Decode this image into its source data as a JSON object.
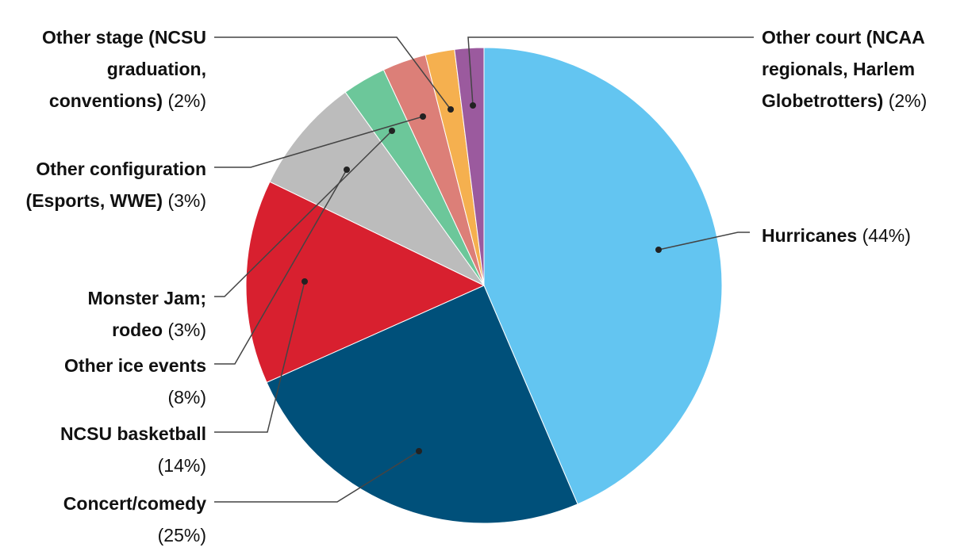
{
  "chart_data": {
    "type": "pie",
    "categories": [
      "Hurricanes",
      "Concert/comedy",
      "NCSU basketball",
      "Other ice events",
      "Monster Jam; rodeo",
      "Other configuration (Esports, WWE)",
      "Other stage (NCSU graduation, conventions)",
      "Other court (NCAA regionals, Harlem Globetrotters)"
    ],
    "values": [
      44,
      25,
      14,
      8,
      3,
      3,
      2,
      2
    ],
    "value_labels": [
      "(44%)",
      "(25%)",
      "(14%)",
      "(8%)",
      "(3%)",
      "(3%)",
      "(2%)",
      "(2%)"
    ],
    "colors": [
      "#63c5f1",
      "#00507a",
      "#d8202f",
      "#bcbcbc",
      "#6cc79a",
      "#dc7f78",
      "#f5b04f",
      "#9b5a9e"
    ]
  }
}
